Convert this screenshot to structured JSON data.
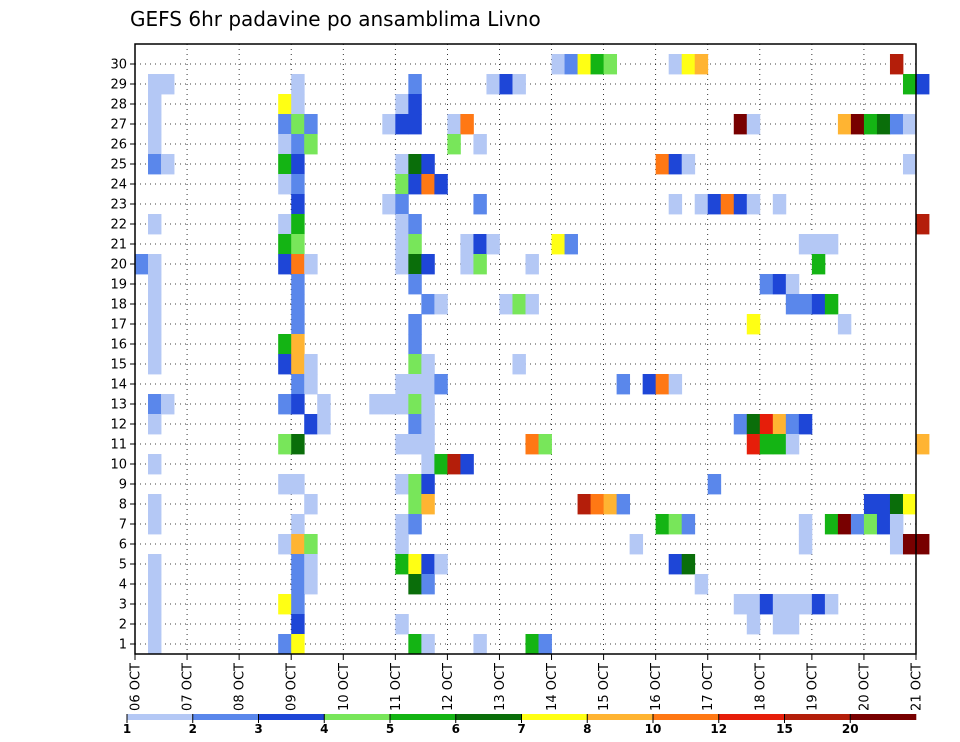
{
  "chart_data": {
    "type": "heatmap",
    "title": "GEFS 6hr padavine po ansamblima Livno",
    "x_ticks": [
      "06 OCT",
      "07 OCT",
      "08 OCT",
      "09 OCT",
      "10 OCT",
      "11 OCT",
      "12 OCT",
      "13 OCT",
      "14 OCT",
      "15 OCT",
      "16 OCT",
      "17 OCT",
      "18 OCT",
      "19 OCT",
      "20 OCT",
      "21 OCT"
    ],
    "y_ticks": [
      "1",
      "2",
      "3",
      "4",
      "5",
      "6",
      "7",
      "8",
      "9",
      "10",
      "11",
      "12",
      "13",
      "14",
      "15",
      "16",
      "17",
      "18",
      "19",
      "20",
      "21",
      "22",
      "23",
      "24",
      "25",
      "26",
      "27",
      "28",
      "29",
      "30"
    ],
    "grid": true,
    "colorbar": {
      "labels": [
        "1",
        "2",
        "3",
        "4",
        "5",
        "6",
        "7",
        "8",
        "10",
        "12",
        "15",
        "20"
      ],
      "colors": [
        "#b4c8f5",
        "#5a87eb",
        "#1e46d7",
        "#78e65a",
        "#14b414",
        "#0a6e0a",
        "#ffff14",
        "#ffb432",
        "#ff7814",
        "#e61e0a",
        "#b41e0a",
        "#780000"
      ]
    },
    "cells_note": "each cell: [member_row, six-hour step from 06 OCT 00Z, color_index]",
    "cells": [
      [
        30,
        32,
        0
      ],
      [
        30,
        33,
        1
      ],
      [
        30,
        34,
        6
      ],
      [
        30,
        35,
        4
      ],
      [
        30,
        36,
        3
      ],
      [
        30,
        41,
        0
      ],
      [
        30,
        42,
        6
      ],
      [
        30,
        43,
        7
      ],
      [
        30,
        58,
        10
      ],
      [
        29,
        1,
        0
      ],
      [
        29,
        2,
        0
      ],
      [
        29,
        12,
        0
      ],
      [
        29,
        21,
        1
      ],
      [
        29,
        27,
        0
      ],
      [
        29,
        28,
        2
      ],
      [
        29,
        29,
        0
      ],
      [
        29,
        59,
        4
      ],
      [
        29,
        60,
        2
      ],
      [
        28,
        1,
        0
      ],
      [
        28,
        11,
        6
      ],
      [
        28,
        12,
        0
      ],
      [
        28,
        20,
        0
      ],
      [
        28,
        21,
        2
      ],
      [
        27,
        1,
        0
      ],
      [
        27,
        11,
        1
      ],
      [
        27,
        12,
        3
      ],
      [
        27,
        13,
        1
      ],
      [
        27,
        19,
        0
      ],
      [
        27,
        20,
        2
      ],
      [
        27,
        21,
        2
      ],
      [
        27,
        24,
        0
      ],
      [
        27,
        25,
        8
      ],
      [
        27,
        46,
        11
      ],
      [
        27,
        47,
        0
      ],
      [
        27,
        54,
        7
      ],
      [
        27,
        55,
        11
      ],
      [
        27,
        56,
        4
      ],
      [
        27,
        57,
        5
      ],
      [
        27,
        58,
        1
      ],
      [
        27,
        59,
        0
      ],
      [
        26,
        1,
        0
      ],
      [
        26,
        11,
        0
      ],
      [
        26,
        12,
        1
      ],
      [
        26,
        13,
        3
      ],
      [
        26,
        24,
        3
      ],
      [
        26,
        26,
        0
      ],
      [
        25,
        1,
        1
      ],
      [
        25,
        2,
        0
      ],
      [
        25,
        11,
        4
      ],
      [
        25,
        12,
        2
      ],
      [
        25,
        20,
        0
      ],
      [
        25,
        21,
        5
      ],
      [
        25,
        22,
        2
      ],
      [
        25,
        40,
        8
      ],
      [
        25,
        41,
        2
      ],
      [
        25,
        42,
        0
      ],
      [
        25,
        59,
        0
      ],
      [
        24,
        11,
        0
      ],
      [
        24,
        12,
        1
      ],
      [
        24,
        20,
        3
      ],
      [
        24,
        21,
        2
      ],
      [
        24,
        22,
        8
      ],
      [
        24,
        23,
        2
      ],
      [
        23,
        12,
        2
      ],
      [
        23,
        19,
        0
      ],
      [
        23,
        20,
        1
      ],
      [
        23,
        26,
        1
      ],
      [
        23,
        41,
        0
      ],
      [
        23,
        43,
        0
      ],
      [
        23,
        44,
        2
      ],
      [
        23,
        45,
        8
      ],
      [
        23,
        46,
        2
      ],
      [
        23,
        47,
        0
      ],
      [
        23,
        49,
        0
      ],
      [
        22,
        1,
        0
      ],
      [
        22,
        11,
        0
      ],
      [
        22,
        12,
        4
      ],
      [
        22,
        20,
        0
      ],
      [
        22,
        21,
        1
      ],
      [
        22,
        60,
        10
      ],
      [
        21,
        11,
        4
      ],
      [
        21,
        12,
        3
      ],
      [
        21,
        20,
        0
      ],
      [
        21,
        21,
        3
      ],
      [
        21,
        25,
        0
      ],
      [
        21,
        26,
        2
      ],
      [
        21,
        27,
        0
      ],
      [
        21,
        32,
        6
      ],
      [
        21,
        33,
        1
      ],
      [
        21,
        51,
        0
      ],
      [
        21,
        52,
        0
      ],
      [
        21,
        53,
        0
      ],
      [
        20,
        0,
        1
      ],
      [
        20,
        1,
        0
      ],
      [
        20,
        11,
        2
      ],
      [
        20,
        12,
        8
      ],
      [
        20,
        13,
        0
      ],
      [
        20,
        20,
        0
      ],
      [
        20,
        21,
        5
      ],
      [
        20,
        22,
        2
      ],
      [
        20,
        25,
        0
      ],
      [
        20,
        26,
        3
      ],
      [
        20,
        30,
        0
      ],
      [
        20,
        52,
        4
      ],
      [
        19,
        1,
        0
      ],
      [
        19,
        12,
        1
      ],
      [
        19,
        21,
        1
      ],
      [
        19,
        48,
        1
      ],
      [
        19,
        49,
        2
      ],
      [
        19,
        50,
        0
      ],
      [
        18,
        1,
        0
      ],
      [
        18,
        12,
        1
      ],
      [
        18,
        22,
        1
      ],
      [
        18,
        23,
        0
      ],
      [
        18,
        28,
        0
      ],
      [
        18,
        29,
        3
      ],
      [
        18,
        30,
        0
      ],
      [
        18,
        50,
        1
      ],
      [
        18,
        51,
        1
      ],
      [
        18,
        52,
        2
      ],
      [
        18,
        53,
        4
      ],
      [
        17,
        1,
        0
      ],
      [
        17,
        12,
        1
      ],
      [
        17,
        21,
        1
      ],
      [
        17,
        47,
        6
      ],
      [
        17,
        54,
        0
      ],
      [
        16,
        1,
        0
      ],
      [
        16,
        11,
        4
      ],
      [
        16,
        12,
        7
      ],
      [
        16,
        21,
        1
      ],
      [
        15,
        1,
        0
      ],
      [
        15,
        11,
        2
      ],
      [
        15,
        12,
        7
      ],
      [
        15,
        13,
        0
      ],
      [
        15,
        21,
        3
      ],
      [
        15,
        22,
        0
      ],
      [
        15,
        29,
        0
      ],
      [
        14,
        12,
        1
      ],
      [
        14,
        13,
        0
      ],
      [
        14,
        20,
        0
      ],
      [
        14,
        21,
        0
      ],
      [
        14,
        22,
        0
      ],
      [
        14,
        23,
        1
      ],
      [
        14,
        37,
        1
      ],
      [
        14,
        39,
        2
      ],
      [
        14,
        40,
        8
      ],
      [
        14,
        41,
        0
      ],
      [
        13,
        1,
        1
      ],
      [
        13,
        2,
        0
      ],
      [
        13,
        11,
        1
      ],
      [
        13,
        12,
        2
      ],
      [
        13,
        14,
        0
      ],
      [
        13,
        18,
        0
      ],
      [
        13,
        19,
        0
      ],
      [
        13,
        20,
        0
      ],
      [
        13,
        21,
        3
      ],
      [
        13,
        22,
        0
      ],
      [
        12,
        1,
        0
      ],
      [
        12,
        13,
        2
      ],
      [
        12,
        14,
        0
      ],
      [
        12,
        21,
        1
      ],
      [
        12,
        22,
        0
      ],
      [
        12,
        46,
        1
      ],
      [
        12,
        47,
        5
      ],
      [
        12,
        48,
        9
      ],
      [
        12,
        49,
        7
      ],
      [
        12,
        50,
        1
      ],
      [
        12,
        51,
        2
      ],
      [
        11,
        11,
        3
      ],
      [
        11,
        12,
        5
      ],
      [
        11,
        20,
        0
      ],
      [
        11,
        21,
        0
      ],
      [
        11,
        22,
        0
      ],
      [
        11,
        30,
        8
      ],
      [
        11,
        31,
        3
      ],
      [
        11,
        47,
        9
      ],
      [
        11,
        48,
        4
      ],
      [
        11,
        49,
        4
      ],
      [
        11,
        50,
        0
      ],
      [
        11,
        60,
        7
      ],
      [
        10,
        1,
        0
      ],
      [
        10,
        22,
        0
      ],
      [
        10,
        23,
        4
      ],
      [
        10,
        24,
        10
      ],
      [
        10,
        25,
        2
      ],
      [
        9,
        11,
        0
      ],
      [
        9,
        12,
        0
      ],
      [
        9,
        20,
        0
      ],
      [
        9,
        21,
        3
      ],
      [
        9,
        22,
        2
      ],
      [
        9,
        44,
        1
      ],
      [
        8,
        1,
        0
      ],
      [
        8,
        13,
        0
      ],
      [
        8,
        21,
        3
      ],
      [
        8,
        22,
        7
      ],
      [
        8,
        34,
        10
      ],
      [
        8,
        35,
        8
      ],
      [
        8,
        36,
        7
      ],
      [
        8,
        37,
        1
      ],
      [
        8,
        56,
        2
      ],
      [
        8,
        57,
        2
      ],
      [
        8,
        58,
        5
      ],
      [
        8,
        59,
        6
      ],
      [
        7,
        1,
        0
      ],
      [
        7,
        12,
        0
      ],
      [
        7,
        20,
        0
      ],
      [
        7,
        21,
        1
      ],
      [
        7,
        40,
        4
      ],
      [
        7,
        41,
        3
      ],
      [
        7,
        42,
        1
      ],
      [
        7,
        51,
        0
      ],
      [
        7,
        53,
        4
      ],
      [
        7,
        54,
        11
      ],
      [
        7,
        55,
        1
      ],
      [
        7,
        56,
        3
      ],
      [
        7,
        57,
        2
      ],
      [
        7,
        58,
        0
      ],
      [
        6,
        11,
        0
      ],
      [
        6,
        12,
        7
      ],
      [
        6,
        13,
        3
      ],
      [
        6,
        20,
        0
      ],
      [
        6,
        38,
        0
      ],
      [
        6,
        51,
        0
      ],
      [
        6,
        58,
        0
      ],
      [
        6,
        59,
        11
      ],
      [
        6,
        60,
        11
      ],
      [
        5,
        1,
        0
      ],
      [
        5,
        12,
        1
      ],
      [
        5,
        13,
        0
      ],
      [
        5,
        20,
        4
      ],
      [
        5,
        21,
        6
      ],
      [
        5,
        22,
        2
      ],
      [
        5,
        23,
        0
      ],
      [
        5,
        41,
        2
      ],
      [
        5,
        42,
        5
      ],
      [
        4,
        1,
        0
      ],
      [
        4,
        12,
        1
      ],
      [
        4,
        13,
        0
      ],
      [
        4,
        21,
        5
      ],
      [
        4,
        22,
        1
      ],
      [
        4,
        43,
        0
      ],
      [
        3,
        1,
        0
      ],
      [
        3,
        11,
        6
      ],
      [
        3,
        12,
        1
      ],
      [
        3,
        46,
        0
      ],
      [
        3,
        47,
        0
      ],
      [
        3,
        48,
        2
      ],
      [
        3,
        49,
        0
      ],
      [
        3,
        50,
        0
      ],
      [
        3,
        51,
        0
      ],
      [
        3,
        52,
        2
      ],
      [
        3,
        53,
        0
      ],
      [
        2,
        1,
        0
      ],
      [
        2,
        12,
        2
      ],
      [
        2,
        20,
        0
      ],
      [
        2,
        47,
        0
      ],
      [
        2,
        49,
        0
      ],
      [
        2,
        50,
        0
      ],
      [
        1,
        1,
        0
      ],
      [
        1,
        11,
        1
      ],
      [
        1,
        12,
        6
      ],
      [
        1,
        21,
        4
      ],
      [
        1,
        22,
        0
      ],
      [
        1,
        26,
        0
      ],
      [
        1,
        30,
        4
      ],
      [
        1,
        31,
        1
      ]
    ]
  }
}
